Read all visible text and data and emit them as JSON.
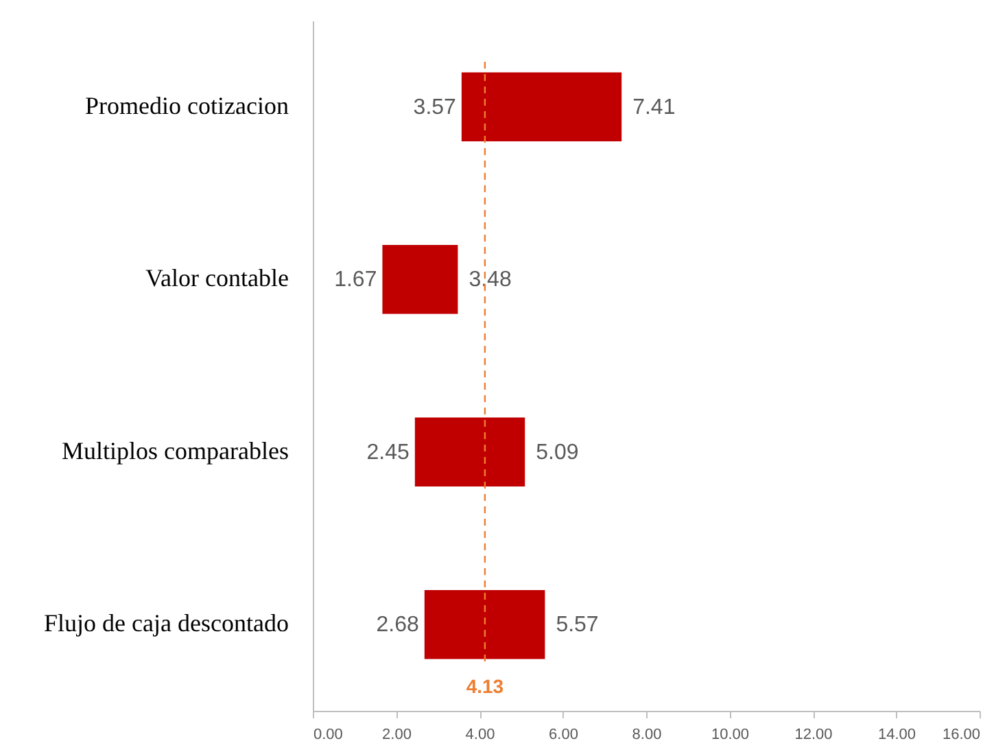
{
  "chart_data": {
    "type": "bar",
    "orientation": "horizontal",
    "categories": [
      "Promedio cotizacion",
      "Valor contable",
      "Multiplos comparables",
      "Flujo de caja descontado"
    ],
    "base": [
      3.57,
      1.67,
      2.45,
      2.68
    ],
    "values": [
      3.84,
      1.81,
      2.64,
      2.89
    ],
    "color": "#c00000",
    "xlim": [
      0,
      16
    ],
    "xticks": [
      {
        "value": 0,
        "label": "0.00"
      },
      {
        "value": 2,
        "label": "2.00"
      },
      {
        "value": 4,
        "label": "4.00"
      },
      {
        "value": 6,
        "label": "6.00"
      },
      {
        "value": 8,
        "label": "8.00"
      },
      {
        "value": 10,
        "label": "10.00"
      },
      {
        "value": 12,
        "label": "12.00"
      },
      {
        "value": 14,
        "label": "14.00"
      },
      {
        "value": 16,
        "label": "16.00"
      }
    ],
    "ref_lines": [
      {
        "axis": "x",
        "value": 4.13,
        "label": "4.13",
        "color": "#ed7d31",
        "line_style": "dashed"
      }
    ],
    "annotations": [
      {
        "text": "3.57",
        "x": 3.57,
        "y": "Promedio cotizacion"
      },
      {
        "text": "7.41",
        "x": 7.41,
        "y": "Promedio cotizacion"
      },
      {
        "text": "1.67",
        "x": 1.67,
        "y": "Valor contable"
      },
      {
        "text": "3.48",
        "x": 3.48,
        "y": "Valor contable"
      },
      {
        "text": "2.45",
        "x": 2.45,
        "y": "Multiplos comparables"
      },
      {
        "text": "5.09",
        "x": 5.09,
        "y": "Multiplos comparables"
      },
      {
        "text": "2.68",
        "x": 2.68,
        "y": "Flujo de caja descontado"
      },
      {
        "text": "5.57",
        "x": 5.57,
        "y": "Flujo de caja descontado"
      }
    ]
  }
}
